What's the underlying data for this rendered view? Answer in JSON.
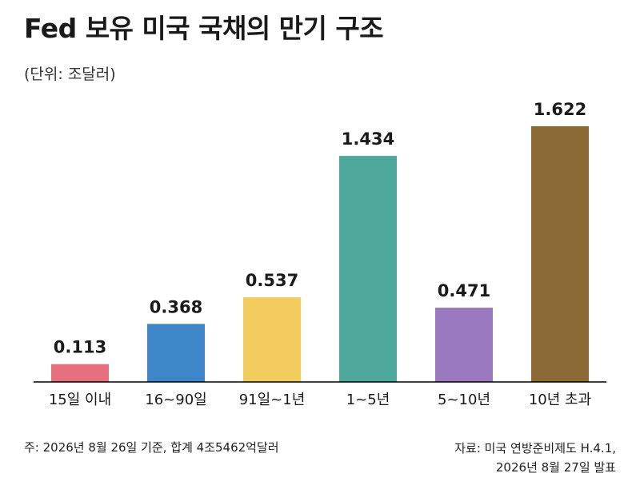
{
  "header": {
    "title": "Fed 보유 미국 국채의 만기 구조",
    "unit": "(단위: 조달러)"
  },
  "footer": {
    "note": "주: 2026년 8월 26일 기준, 합계 4조5462억달러",
    "source_line1": "자료: 미국 연방준비제도 H.4.1,",
    "source_line2": "2026년 8월 27일 발표"
  },
  "chart_data": {
    "type": "bar",
    "title": "Fed 보유 미국 국채의 만기 구조",
    "ylabel": "(단위: 조달러)",
    "xlabel": "",
    "categories": [
      "15일 이내",
      "16~90일",
      "91일~1년",
      "1~5년",
      "5~10년",
      "10년 초과"
    ],
    "values": [
      0.113,
      0.368,
      0.537,
      1.434,
      0.471,
      1.622
    ],
    "value_labels": [
      "0.113",
      "0.368",
      "0.537",
      "1.434",
      "0.471",
      "1.622"
    ],
    "colors": [
      "#e8707e",
      "#3d87c8",
      "#f2cc5c",
      "#4fa89c",
      "#9b79c0",
      "#8b6a35"
    ],
    "ylim": [
      0,
      1.622
    ],
    "grid": false,
    "legend": "none"
  }
}
